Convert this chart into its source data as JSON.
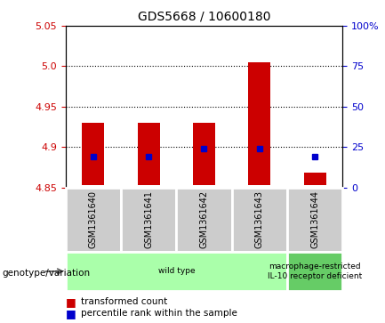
{
  "title": "GDS5668 / 10600180",
  "samples": [
    "GSM1361640",
    "GSM1361641",
    "GSM1361642",
    "GSM1361643",
    "GSM1361644"
  ],
  "bar_bottoms": [
    4.853,
    4.853,
    4.853,
    4.853,
    4.853
  ],
  "bar_tops": [
    4.93,
    4.93,
    4.93,
    5.005,
    4.868
  ],
  "percentile_values": [
    4.888,
    4.888,
    4.898,
    4.898,
    4.888
  ],
  "ylim": [
    4.85,
    5.05
  ],
  "yticks_left": [
    4.85,
    4.9,
    4.95,
    5.0,
    5.05
  ],
  "yticks_right_pct": [
    0,
    25,
    50,
    75,
    100
  ],
  "ytick_right_labels": [
    "0",
    "25",
    "50",
    "75",
    "100%"
  ],
  "bar_color": "#cc0000",
  "percentile_color": "#0000cc",
  "grid_yticks": [
    4.9,
    4.95,
    5.0
  ],
  "groups": [
    {
      "label": "wild type",
      "sample_indices": [
        0,
        1,
        2,
        3
      ],
      "color": "#aaffaa"
    },
    {
      "label": "macrophage-restricted\nIL-10 receptor deficient",
      "sample_indices": [
        4
      ],
      "color": "#66cc66"
    }
  ],
  "genotype_label": "genotype/variation",
  "legend_items": [
    {
      "color": "#cc0000",
      "label": "transformed count"
    },
    {
      "color": "#0000cc",
      "label": "percentile rank within the sample"
    }
  ],
  "plot_bg_color": "#ffffff",
  "sample_area_color": "#cccccc",
  "left_tick_color": "#cc0000",
  "right_tick_color": "#0000cc",
  "bar_width": 0.4
}
